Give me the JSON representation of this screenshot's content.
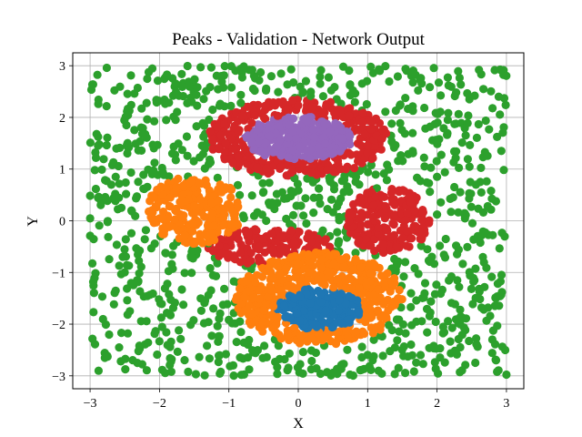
{
  "chart_data": {
    "type": "scatter",
    "title": "Peaks - Validation - Network Output",
    "xlabel": "X",
    "ylabel": "Y",
    "xlim": [
      -3.25,
      3.25
    ],
    "ylim": [
      -3.25,
      3.25
    ],
    "xticks": [
      -3,
      -2,
      -1,
      0,
      1,
      2,
      3
    ],
    "yticks": [
      -3,
      -2,
      -1,
      0,
      1,
      2,
      3
    ],
    "grid": true,
    "marker": "circle",
    "colors": {
      "blue": "#1f77b4",
      "orange": "#ff7f0e",
      "green": "#2ca02c",
      "red": "#d62728",
      "purple": "#9467bd"
    },
    "series": [
      {
        "color": "#2ca02c",
        "region": "uniform background",
        "x_range": [
          -3,
          3
        ],
        "y_range": [
          -3,
          3
        ],
        "count": 1300
      },
      {
        "color": "#d62728",
        "region": "upper-center cluster",
        "center": [
          0,
          1.6
        ],
        "radius": [
          1.3,
          0.75
        ]
      },
      {
        "color": "#d62728",
        "region": "right cluster",
        "center": [
          1.3,
          0
        ],
        "radius": [
          0.6,
          0.65
        ]
      },
      {
        "color": "#d62728",
        "region": "middle cluster",
        "center": [
          -0.4,
          -0.5
        ],
        "radius": [
          0.9,
          0.35
        ]
      },
      {
        "color": "#ff7f0e",
        "region": "left cluster",
        "center": [
          -1.5,
          0.2
        ],
        "radius": [
          0.7,
          0.65
        ]
      },
      {
        "color": "#ff7f0e",
        "region": "bottom cluster",
        "center": [
          0.3,
          -1.5
        ],
        "radius": [
          1.2,
          0.9
        ]
      },
      {
        "color": "#9467bd",
        "region": "top core",
        "center": [
          0,
          1.6
        ],
        "radius": [
          0.78,
          0.42
        ]
      },
      {
        "color": "#1f77b4",
        "region": "bottom core",
        "center": [
          0.3,
          -1.7
        ],
        "radius": [
          0.6,
          0.4
        ]
      }
    ]
  }
}
